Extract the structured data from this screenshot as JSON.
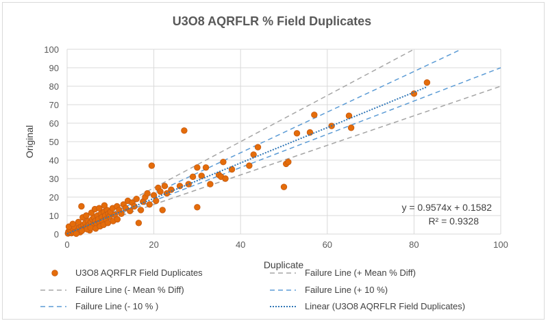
{
  "chart_data": {
    "type": "scatter",
    "title": "U3O8 AQRFLR %  Field Duplicates",
    "xlabel": "Duplicate",
    "ylabel": "Original",
    "xlim": [
      0,
      100
    ],
    "ylim": [
      0,
      100
    ],
    "xticks": [
      0,
      20,
      40,
      60,
      80,
      100
    ],
    "yticks": [
      0,
      10,
      20,
      30,
      40,
      50,
      60,
      70,
      80,
      90,
      100
    ],
    "grid": true,
    "series": [
      {
        "name": "U3O8 AQRFLR Field Duplicates",
        "kind": "points",
        "color": "#E46C0A",
        "points": [
          [
            0.2,
            0.3
          ],
          [
            0.5,
            0.8
          ],
          [
            0.8,
            1.5
          ],
          [
            1.0,
            0.5
          ],
          [
            1.2,
            2.0
          ],
          [
            0.3,
            1.2
          ],
          [
            1.5,
            1.0
          ],
          [
            1.8,
            2.5
          ],
          [
            2.0,
            1.5
          ],
          [
            2.2,
            3.0
          ],
          [
            0.6,
            2.5
          ],
          [
            1.1,
            3.5
          ],
          [
            1.6,
            4.0
          ],
          [
            2.5,
            2.0
          ],
          [
            2.8,
            3.5
          ],
          [
            3.0,
            1.0
          ],
          [
            3.2,
            4.5
          ],
          [
            3.5,
            2.5
          ],
          [
            3.8,
            5.0
          ],
          [
            4.0,
            3.0
          ],
          [
            4.2,
            6.0
          ],
          [
            4.5,
            4.0
          ],
          [
            4.8,
            7.0
          ],
          [
            5.0,
            5.0
          ],
          [
            5.2,
            2.0
          ],
          [
            5.5,
            6.5
          ],
          [
            5.8,
            8.0
          ],
          [
            6.0,
            4.5
          ],
          [
            6.2,
            9.0
          ],
          [
            6.5,
            7.0
          ],
          [
            6.8,
            5.5
          ],
          [
            7.0,
            10.0
          ],
          [
            7.2,
            8.0
          ],
          [
            7.5,
            6.0
          ],
          [
            7.8,
            11.0
          ],
          [
            8.0,
            9.0
          ],
          [
            8.2,
            7.0
          ],
          [
            8.5,
            12.0
          ],
          [
            8.8,
            10.0
          ],
          [
            9.0,
            8.0
          ],
          [
            9.2,
            13.0
          ],
          [
            9.5,
            11.0
          ],
          [
            9.8,
            9.5
          ],
          [
            10.0,
            12.0
          ],
          [
            10.5,
            14.0
          ],
          [
            11.0,
            10.5
          ],
          [
            11.5,
            15.0
          ],
          [
            12.0,
            13.0
          ],
          [
            12.5,
            11.0
          ],
          [
            13.0,
            16.0
          ],
          [
            13.5,
            14.0
          ],
          [
            14.0,
            18.0
          ],
          [
            14.5,
            12.5
          ],
          [
            15.0,
            17.0
          ],
          [
            15.5,
            15.0
          ],
          [
            16.0,
            19.0
          ],
          [
            16.5,
            6.0
          ],
          [
            17.0,
            13.0
          ],
          [
            17.5,
            17.5
          ],
          [
            18.0,
            20.0
          ],
          [
            18.5,
            22.0
          ],
          [
            19.0,
            16.0
          ],
          [
            19.5,
            37.0
          ],
          [
            20.0,
            21.0
          ],
          [
            20.5,
            18.0
          ],
          [
            21.0,
            25.0
          ],
          [
            21.5,
            23.0
          ],
          [
            22.0,
            13.0
          ],
          [
            22.5,
            26.0
          ],
          [
            23.0,
            22.0
          ],
          [
            24.0,
            24.0
          ],
          [
            26.0,
            26.0
          ],
          [
            27.0,
            56.0
          ],
          [
            28.0,
            27.0
          ],
          [
            29.0,
            31.0
          ],
          [
            30.0,
            36.0
          ],
          [
            30.0,
            14.5
          ],
          [
            31.0,
            31.5
          ],
          [
            32.0,
            36.0
          ],
          [
            33.0,
            27.0
          ],
          [
            35.0,
            32.0
          ],
          [
            35.5,
            31.0
          ],
          [
            36.0,
            39.0
          ],
          [
            36.5,
            30.0
          ],
          [
            38.0,
            35.0
          ],
          [
            42.0,
            37.0
          ],
          [
            43.0,
            43.0
          ],
          [
            44.0,
            47.0
          ],
          [
            50.0,
            25.5
          ],
          [
            50.5,
            38.0
          ],
          [
            51.0,
            39.0
          ],
          [
            53.0,
            54.5
          ],
          [
            56.0,
            55.0
          ],
          [
            57.0,
            64.5
          ],
          [
            61.0,
            58.5
          ],
          [
            65.0,
            64.0
          ],
          [
            65.5,
            57.5
          ],
          [
            80.0,
            76.0
          ],
          [
            83.0,
            82.0
          ],
          [
            0.4,
            4.0
          ],
          [
            1.3,
            5.5
          ],
          [
            2.6,
            6.5
          ],
          [
            3.3,
            15.0
          ],
          [
            3.6,
            9.0
          ],
          [
            4.4,
            10.0
          ],
          [
            5.6,
            11.5
          ],
          [
            6.4,
            13.5
          ],
          [
            7.4,
            14.0
          ],
          [
            8.6,
            15.5
          ],
          [
            2.1,
            0.2
          ],
          [
            3.4,
            1.8
          ],
          [
            4.6,
            2.6
          ],
          [
            5.4,
            3.4
          ],
          [
            6.6,
            3.0
          ],
          [
            7.6,
            4.2
          ],
          [
            8.4,
            5.0
          ],
          [
            9.4,
            6.0
          ],
          [
            10.6,
            7.0
          ],
          [
            11.6,
            8.0
          ]
        ]
      },
      {
        "name": "Failure Line (+ Mean % Diff)",
        "kind": "line",
        "style": "dashed",
        "color": "#A5A5A5",
        "slope": 1.25
      },
      {
        "name": "Failure Line (- Mean % Diff)",
        "kind": "line",
        "style": "dashed",
        "color": "#A5A5A5",
        "slope": 0.8
      },
      {
        "name": "Failure Line (+ 10 %)",
        "kind": "line",
        "style": "dashed",
        "color": "#5B9BD5",
        "slope": 1.1
      },
      {
        "name": "Failure Line (- 10 % )",
        "kind": "line",
        "style": "dashed",
        "color": "#5B9BD5",
        "slope": 0.9
      },
      {
        "name": "Linear (U3O8 AQRFLR Field Duplicates)",
        "kind": "trend",
        "style": "dotted",
        "color": "#2E75B6",
        "slope": 0.9574,
        "intercept": 0.1582,
        "x_range": [
          0,
          83
        ]
      }
    ],
    "annotations": [
      "y = 0.9574x + 0.1582",
      "R² = 0.9328"
    ]
  }
}
